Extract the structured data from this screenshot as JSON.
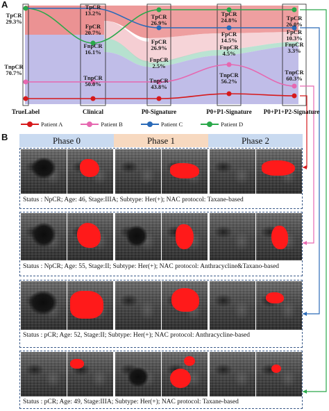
{
  "panel_a": {
    "letter": "A",
    "columns": [
      {
        "id": "truelabel",
        "label": "TrueLabel"
      },
      {
        "id": "clinical",
        "label": "Clinical"
      },
      {
        "id": "p0",
        "label": "P0-Signature"
      },
      {
        "id": "p0p1",
        "label": "P0+P1-Signature"
      },
      {
        "id": "p0p1p2",
        "label": "P0+P1+P2-Signature"
      }
    ],
    "node_labels": {
      "truelabel": [
        {
          "name": "TpCR",
          "pct": "29.3%"
        },
        {
          "name": "TnpCR",
          "pct": "70.7%"
        }
      ],
      "clinical": [
        {
          "name": "TpCR",
          "pct": "13.2%"
        },
        {
          "name": "FpCR",
          "pct": "20.7%"
        },
        {
          "name": "FnpCR",
          "pct": "16.1%"
        },
        {
          "name": "TnpCR",
          "pct": "50.0%"
        }
      ],
      "p0": [
        {
          "name": "TpCR",
          "pct": "26.9%"
        },
        {
          "name": "FpCR",
          "pct": "26.9%"
        },
        {
          "name": "FnpCR",
          "pct": "2.5%"
        },
        {
          "name": "TnpCR",
          "pct": "43.8%"
        }
      ],
      "p0p1": [
        {
          "name": "TpCR",
          "pct": "24.8%"
        },
        {
          "name": "FpCR",
          "pct": "14.5%"
        },
        {
          "name": "FnpCR",
          "pct": "4.5%"
        },
        {
          "name": "TnpCR",
          "pct": "56.2%"
        }
      ],
      "p0p1p2": [
        {
          "name": "TpCR",
          "pct": "26.0%"
        },
        {
          "name": "FpCR",
          "pct": "10.3%"
        },
        {
          "name": "FnpCR",
          "pct": "3.3%"
        },
        {
          "name": "TnpCR",
          "pct": "60.3%"
        }
      ]
    },
    "legend": [
      {
        "label": "Patient A",
        "color": "#d6191b"
      },
      {
        "label": "Patient B",
        "color": "#e668b0"
      },
      {
        "label": "Patient C",
        "color": "#2a6ab8"
      },
      {
        "label": "Patient D",
        "color": "#2aa84a"
      }
    ],
    "colors": {
      "pcr_band": "#e87f80",
      "npcr_band": "#b9b6e6",
      "fnpcr_band": "#a9dcc7",
      "fpcr_band": "#f2c2c8"
    }
  },
  "panel_b": {
    "letter": "B",
    "phases": [
      "Phase 0",
      "Phase 1",
      "Phase 2"
    ],
    "phase_colors": [
      "#c9daf0",
      "#f7d9c0",
      "#c9daf0"
    ],
    "cases": [
      {
        "status": "Status : NpCR; Age: 46, Stage:IIIA; Subtype: Her(+); NAC protocol:  Taxane-based",
        "patient_color": "#d6191b"
      },
      {
        "status": "Status : NpCR; Age: 55, Stage:II; Subtype: Her(+); NAC protocol: Anthracycline&Taxano-based",
        "patient_color": "#e668b0"
      },
      {
        "status": "Status : pCR; Age: 52, Stage:II; Subtype: Her(+); NAC protocol:  Anthracycline-based",
        "patient_color": "#2a6ab8"
      },
      {
        "status": "Status : pCR; Age: 49, Stage:IIIA; Subtype: Her(+); NAC protocol:  Taxane-based",
        "patient_color": "#2aa84a"
      }
    ]
  }
}
